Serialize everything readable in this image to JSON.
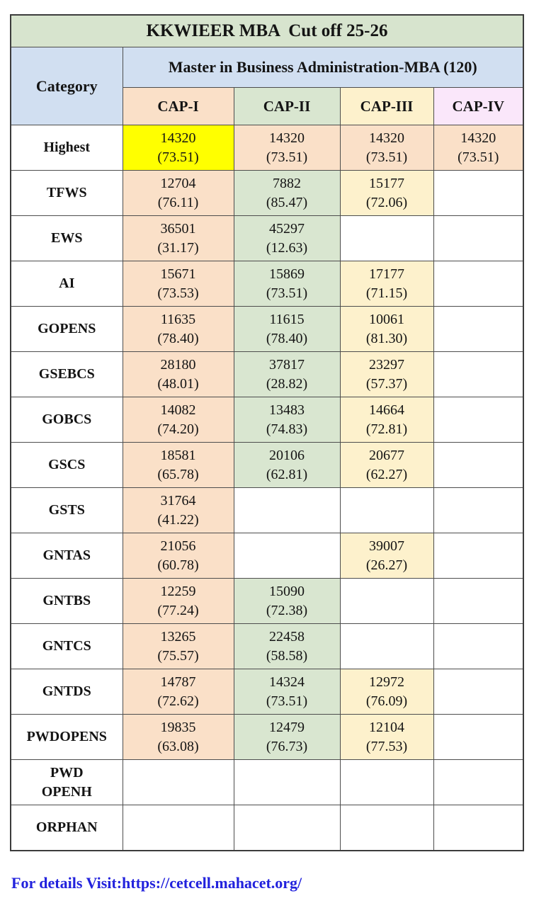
{
  "title": "KKWIEER MBA  Cut off 25-26",
  "table": {
    "category_header": "Category",
    "program_header": "Master in Business Administration-MBA (120)",
    "columns": [
      {
        "label": "CAP-I",
        "bg": "peach"
      },
      {
        "label": "CAP-II",
        "bg": "green"
      },
      {
        "label": "CAP-III",
        "bg": "cream"
      },
      {
        "label": "CAP-IV",
        "bg": "pink"
      }
    ],
    "rows": [
      {
        "category": "Highest",
        "cells": [
          {
            "rank": "14320",
            "pct": "(73.51)",
            "bg": "yellow"
          },
          {
            "rank": "14320",
            "pct": "(73.51)",
            "bg": "peach"
          },
          {
            "rank": "14320",
            "pct": "(73.51)",
            "bg": "peach"
          },
          {
            "rank": "14320",
            "pct": "(73.51)",
            "bg": "peach"
          }
        ]
      },
      {
        "category": "TFWS",
        "cells": [
          {
            "rank": "12704",
            "pct": "(76.11)",
            "bg": "peach"
          },
          {
            "rank": "7882",
            "pct": "(85.47)",
            "bg": "green"
          },
          {
            "rank": "15177",
            "pct": "(72.06)",
            "bg": "cream"
          },
          null
        ]
      },
      {
        "category": "EWS",
        "cells": [
          {
            "rank": "36501",
            "pct": "(31.17)",
            "bg": "peach"
          },
          {
            "rank": "45297",
            "pct": "(12.63)",
            "bg": "green"
          },
          null,
          null
        ]
      },
      {
        "category": "AI",
        "cells": [
          {
            "rank": "15671",
            "pct": "(73.53)",
            "bg": "peach"
          },
          {
            "rank": "15869",
            "pct": "(73.51)",
            "bg": "green"
          },
          {
            "rank": "17177",
            "pct": "(71.15)",
            "bg": "cream"
          },
          null
        ]
      },
      {
        "category": "GOPENS",
        "cells": [
          {
            "rank": "11635",
            "pct": "(78.40)",
            "bg": "peach"
          },
          {
            "rank": "11615",
            "pct": "(78.40)",
            "bg": "green"
          },
          {
            "rank": "10061",
            "pct": "(81.30)",
            "bg": "cream"
          },
          null
        ]
      },
      {
        "category": "GSEBCS",
        "cells": [
          {
            "rank": "28180",
            "pct": "(48.01)",
            "bg": "peach"
          },
          {
            "rank": "37817",
            "pct": "(28.82)",
            "bg": "green"
          },
          {
            "rank": "23297",
            "pct": "(57.37)",
            "bg": "cream"
          },
          null
        ]
      },
      {
        "category": "GOBCS",
        "cells": [
          {
            "rank": "14082",
            "pct": "(74.20)",
            "bg": "peach"
          },
          {
            "rank": "13483",
            "pct": "(74.83)",
            "bg": "green"
          },
          {
            "rank": "14664",
            "pct": "(72.81)",
            "bg": "cream"
          },
          null
        ]
      },
      {
        "category": "GSCS",
        "cells": [
          {
            "rank": "18581",
            "pct": "(65.78)",
            "bg": "peach"
          },
          {
            "rank": "20106",
            "pct": "(62.81)",
            "bg": "green"
          },
          {
            "rank": "20677",
            "pct": "(62.27)",
            "bg": "cream"
          },
          null
        ]
      },
      {
        "category": "GSTS",
        "cells": [
          {
            "rank": "31764",
            "pct": "(41.22)",
            "bg": "peach"
          },
          null,
          null,
          null
        ]
      },
      {
        "category": "GNTAS",
        "cells": [
          {
            "rank": "21056",
            "pct": "(60.78)",
            "bg": "peach"
          },
          null,
          {
            "rank": "39007",
            "pct": "(26.27)",
            "bg": "cream"
          },
          null
        ]
      },
      {
        "category": "GNTBS",
        "cells": [
          {
            "rank": "12259",
            "pct": "(77.24)",
            "bg": "peach"
          },
          {
            "rank": "15090",
            "pct": "(72.38)",
            "bg": "green"
          },
          null,
          null
        ]
      },
      {
        "category": "GNTCS",
        "cells": [
          {
            "rank": "13265",
            "pct": "(75.57)",
            "bg": "peach"
          },
          {
            "rank": "22458",
            "pct": "(58.58)",
            "bg": "green"
          },
          null,
          null
        ]
      },
      {
        "category": "GNTDS",
        "cells": [
          {
            "rank": "14787",
            "pct": "(72.62)",
            "bg": "peach"
          },
          {
            "rank": "14324",
            "pct": "(73.51)",
            "bg": "green"
          },
          {
            "rank": "12972",
            "pct": "(76.09)",
            "bg": "cream"
          },
          null
        ]
      },
      {
        "category": "PWDOPENS",
        "cells": [
          {
            "rank": "19835",
            "pct": "(63.08)",
            "bg": "peach"
          },
          {
            "rank": "12479",
            "pct": "(76.73)",
            "bg": "green"
          },
          {
            "rank": "12104",
            "pct": "(77.53)",
            "bg": "cream"
          },
          null
        ]
      },
      {
        "category": "PWD\nOPENH",
        "cells": [
          null,
          null,
          null,
          null
        ]
      },
      {
        "category": "ORPHAN",
        "cells": [
          null,
          null,
          null,
          null
        ]
      }
    ]
  },
  "footer": {
    "link_text": "For details Visit:https://cetcell.mahacet.org/"
  },
  "colors": {
    "title_bg": "#D7E4CE",
    "header_blue": "#D1DFF1",
    "peach": "#FAE0C8",
    "green": "#D9E6D0",
    "cream": "#FDF1CC",
    "pink": "#FAE7FA",
    "yellow": "#FFFF00",
    "border": "#4D4D4D",
    "link_blue": "#2222DD"
  }
}
